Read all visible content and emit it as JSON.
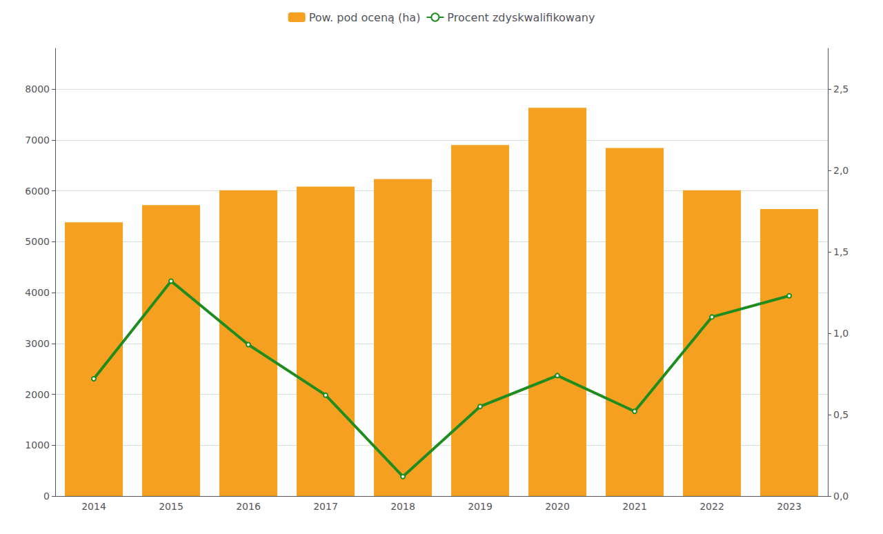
{
  "chart_data": {
    "type": "bar",
    "categories": [
      "2014",
      "2015",
      "2016",
      "2017",
      "2018",
      "2019",
      "2020",
      "2021",
      "2022",
      "2023"
    ],
    "series": [
      {
        "name": "Pow. pod oceną (ha)",
        "type": "bar",
        "color": "#F5A020",
        "values": [
          5380,
          5720,
          6010,
          6080,
          6230,
          6900,
          7630,
          6840,
          6010,
          5640
        ]
      },
      {
        "name": "Procent zdyskwalifikowany",
        "type": "line",
        "color": "#1e8c1e",
        "axis": "y2",
        "values": [
          0.72,
          1.32,
          0.93,
          0.62,
          0.12,
          0.55,
          0.74,
          0.52,
          1.1,
          1.23
        ]
      }
    ],
    "ylim": [
      0,
      8800
    ],
    "yticks": [
      0,
      1000,
      2000,
      3000,
      4000,
      5000,
      6000,
      7000,
      8000
    ],
    "y2lim": [
      0,
      2.75
    ],
    "y2ticks": [
      {
        "value": 0.0,
        "label": "0,0"
      },
      {
        "value": 0.5,
        "label": "0,5"
      },
      {
        "value": 1.0,
        "label": "1,0"
      },
      {
        "value": 1.5,
        "label": "1,5"
      },
      {
        "value": 2.0,
        "label": "2,0"
      },
      {
        "value": 2.5,
        "label": "2,5"
      }
    ],
    "grid": true,
    "legend": "top"
  }
}
